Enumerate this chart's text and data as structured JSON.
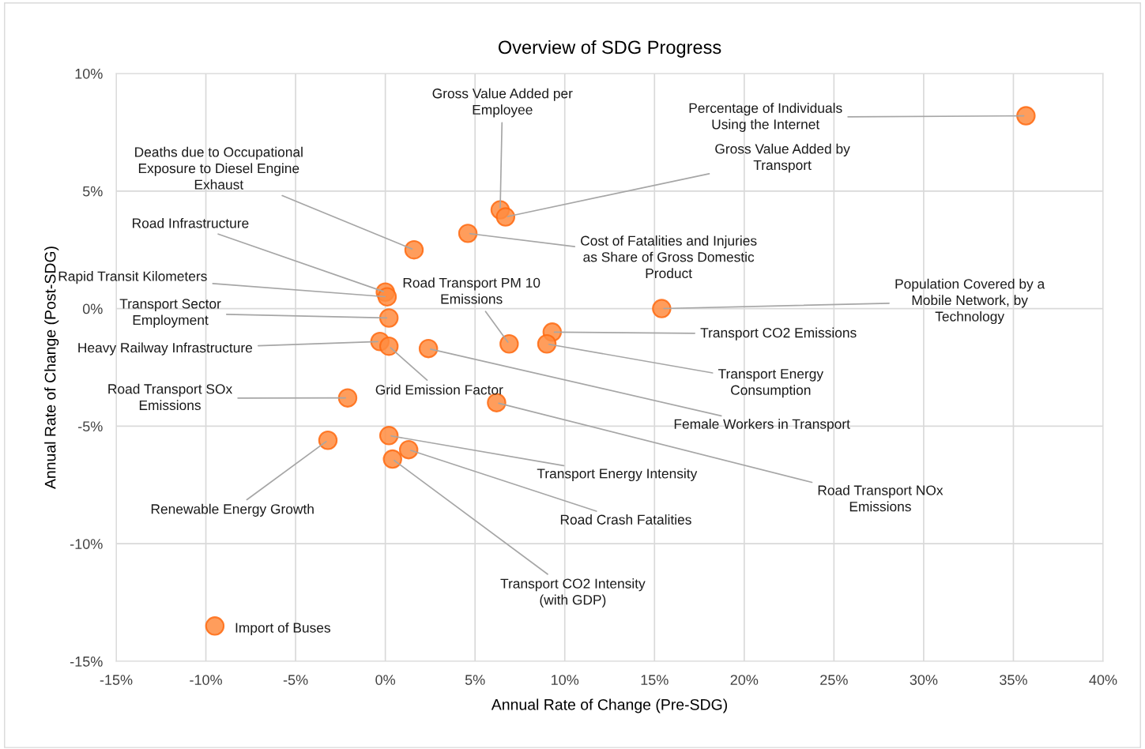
{
  "chart_data": {
    "type": "scatter",
    "title": "Overview of SDG Progress",
    "xlabel": "Annual Rate of Change (Pre-SDG)",
    "ylabel": "Annual Rate of Change (Post-SDG)",
    "xlim": [
      -15,
      40
    ],
    "ylim": [
      -15,
      10
    ],
    "xticks": [
      {
        "value": -15,
        "label": "-15%"
      },
      {
        "value": -10,
        "label": "-10%"
      },
      {
        "value": -5,
        "label": "-5%"
      },
      {
        "value": 0,
        "label": "0%"
      },
      {
        "value": 5,
        "label": "5%"
      },
      {
        "value": 10,
        "label": "10%"
      },
      {
        "value": 15,
        "label": "15%"
      },
      {
        "value": 20,
        "label": "20%"
      },
      {
        "value": 25,
        "label": "25%"
      },
      {
        "value": 30,
        "label": "30%"
      },
      {
        "value": 35,
        "label": "35%"
      },
      {
        "value": 40,
        "label": "40%"
      }
    ],
    "yticks": [
      {
        "value": -15,
        "label": "-15%"
      },
      {
        "value": -10,
        "label": "-10%"
      },
      {
        "value": -5,
        "label": "-5%"
      },
      {
        "value": 0,
        "label": "0%"
      },
      {
        "value": 5,
        "label": "5%"
      },
      {
        "value": 10,
        "label": "10%"
      }
    ],
    "grid": true,
    "legend": false,
    "marker": "circle",
    "series": [
      {
        "color": "#ff8c3f",
        "x": [
          35.7,
          6.4,
          6.7,
          4.6,
          1.6,
          0.0,
          0.1,
          0.2,
          -0.3,
          0.2,
          2.4,
          6.9,
          9.3,
          9.0,
          15.4,
          6.2,
          -2.1,
          -3.2,
          0.2,
          1.3,
          0.4,
          -9.5
        ],
        "values": [
          8.2,
          4.2,
          3.9,
          3.2,
          2.5,
          0.7,
          0.5,
          -0.4,
          -1.4,
          -1.6,
          -1.7,
          -1.5,
          -1.0,
          -1.5,
          0.0,
          -4.0,
          -3.8,
          -5.6,
          -5.4,
          -6.0,
          -6.4,
          -13.5
        ]
      }
    ],
    "annotations": [
      {
        "text": "Percentage of Individuals\nUsing the Internet",
        "x": 35.7,
        "y": 8.2
      },
      {
        "text": "Gross Value Added per\nEmployee",
        "x": 6.4,
        "y": 4.2
      },
      {
        "text": "Gross Value Added by\nTransport",
        "x": 6.7,
        "y": 3.9
      },
      {
        "text": "Cost of Fatalities and Injuries\nas Share of Gross Domestic\nProduct",
        "x": 4.6,
        "y": 3.2
      },
      {
        "text": "Deaths due to Occupational\nExposure to Diesel Engine\nExhaust",
        "x": 1.6,
        "y": 2.5
      },
      {
        "text": "Road Infrastructure",
        "x": 0.0,
        "y": 0.7
      },
      {
        "text": "Rapid Transit Kilometers",
        "x": 0.1,
        "y": 0.5
      },
      {
        "text": "Transport Sector\nEmployment",
        "x": 0.2,
        "y": -0.4
      },
      {
        "text": "Heavy Railway Infrastructure",
        "x": -0.3,
        "y": -1.4
      },
      {
        "text": "Grid Emission Factor",
        "x": 0.2,
        "y": -1.6
      },
      {
        "text": "Female Workers in Transport",
        "x": 2.4,
        "y": -1.7
      },
      {
        "text": "Road Transport PM 10\nEmissions",
        "x": 6.9,
        "y": -1.5
      },
      {
        "text": "Transport CO2 Emissions",
        "x": 9.3,
        "y": -1.0
      },
      {
        "text": "Transport Energy\nConsumption",
        "x": 9.0,
        "y": -1.5
      },
      {
        "text": "Population Covered by a\nMobile Network, by\nTechnology",
        "x": 15.4,
        "y": 0.0
      },
      {
        "text": "Road Transport NOx\nEmissions",
        "x": 6.2,
        "y": -4.0
      },
      {
        "text": "Road Transport SOx\nEmissions",
        "x": -2.1,
        "y": -3.8
      },
      {
        "text": "Renewable Energy Growth",
        "x": -3.2,
        "y": -5.6
      },
      {
        "text": "Transport Energy Intensity",
        "x": 0.2,
        "y": -5.4
      },
      {
        "text": "Road Crash Fatalities",
        "x": 1.3,
        "y": -6.0
      },
      {
        "text": "Transport CO2 Intensity\n(with GDP)",
        "x": 0.4,
        "y": -6.4
      },
      {
        "text": "Import of Buses",
        "x": -9.5,
        "y": -13.5
      }
    ]
  }
}
